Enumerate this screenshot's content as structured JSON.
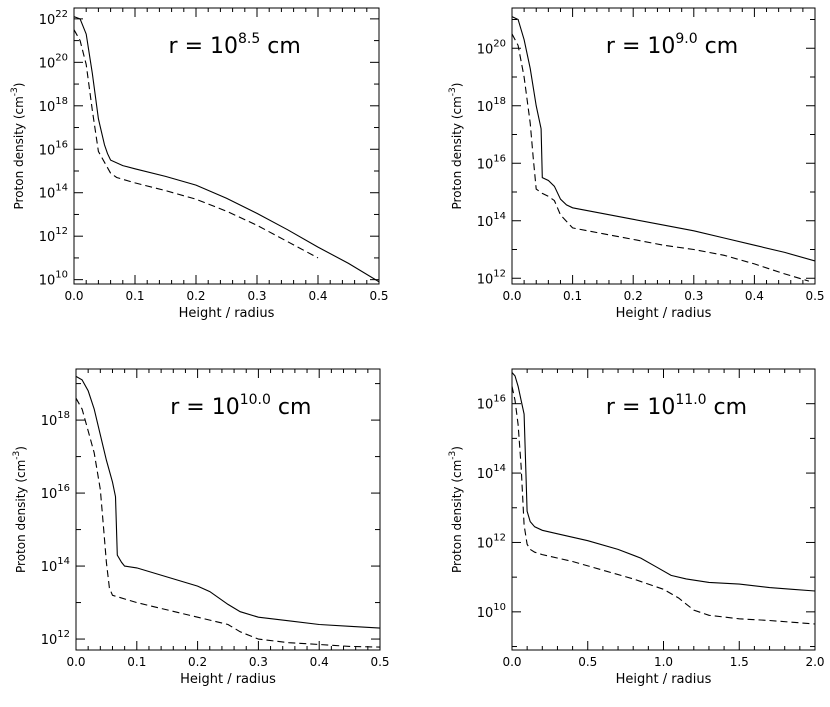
{
  "chart_data": [
    {
      "type": "line",
      "panel": "top-left",
      "annotation": {
        "prefix": "r  =  10",
        "exponent": "8.5",
        "unit": "cm"
      },
      "xlabel": "Height / radius",
      "ylabel": "Proton density (cm",
      "ylabel_exp": "-3",
      "ylabel_close": ")",
      "xlim": [
        0,
        0.5
      ],
      "ylog_range": [
        9.8,
        22.5
      ],
      "xticks": [
        0,
        0.1,
        0.2,
        0.3,
        0.4,
        0.5
      ],
      "xtick_labels": [
        "0.0",
        "0.1",
        "0.2",
        "0.3",
        "0.4",
        "0.5"
      ],
      "yticks": [
        10,
        12,
        14,
        16,
        18,
        20,
        22
      ],
      "ytick_base": "10",
      "ytick_exps": [
        "10",
        "12",
        "14",
        "16",
        "18",
        "20",
        "22"
      ],
      "series": [
        {
          "name": "solid",
          "style": "solid",
          "x": [
            0,
            0.01,
            0.02,
            0.03,
            0.04,
            0.05,
            0.055,
            0.06,
            0.08,
            0.1,
            0.15,
            0.2,
            0.25,
            0.3,
            0.35,
            0.4,
            0.45,
            0.5
          ],
          "y": [
            22.1,
            22.0,
            21.3,
            19.5,
            17.4,
            16.2,
            15.8,
            15.5,
            15.25,
            15.1,
            14.75,
            14.35,
            13.75,
            13.05,
            12.3,
            11.5,
            10.75,
            9.9
          ]
        },
        {
          "name": "dashed",
          "style": "dashed",
          "x": [
            0,
            0.01,
            0.02,
            0.03,
            0.04,
            0.05,
            0.06,
            0.07,
            0.1,
            0.15,
            0.2,
            0.25,
            0.3,
            0.35,
            0.4
          ],
          "y": [
            21.5,
            21.0,
            19.9,
            17.8,
            15.9,
            15.4,
            14.9,
            14.7,
            14.45,
            14.1,
            13.7,
            13.15,
            12.5,
            11.75,
            11.0
          ]
        }
      ]
    },
    {
      "type": "line",
      "panel": "top-right",
      "annotation": {
        "prefix": "r  =  10",
        "exponent": "9.0",
        "unit": "cm"
      },
      "xlabel": "Height / radius",
      "ylabel": "Proton density (cm",
      "ylabel_exp": "-3",
      "ylabel_close": ")",
      "xlim": [
        0,
        0.5
      ],
      "ylog_range": [
        11.8,
        21.4
      ],
      "xticks": [
        0,
        0.1,
        0.2,
        0.3,
        0.4,
        0.5
      ],
      "xtick_labels": [
        "0.0",
        "0.1",
        "0.2",
        "0.3",
        "0.4",
        "0.5"
      ],
      "yticks": [
        12,
        14,
        16,
        18,
        20
      ],
      "ytick_base": "10",
      "ytick_exps": [
        "12",
        "14",
        "16",
        "18",
        "20"
      ],
      "series": [
        {
          "name": "solid",
          "style": "solid",
          "x": [
            0,
            0.01,
            0.02,
            0.03,
            0.04,
            0.048,
            0.05,
            0.06,
            0.07,
            0.08,
            0.09,
            0.1,
            0.15,
            0.2,
            0.25,
            0.3,
            0.35,
            0.4,
            0.45,
            0.5
          ],
          "y": [
            21.1,
            21.0,
            20.3,
            19.3,
            18.0,
            17.2,
            15.5,
            15.4,
            15.2,
            14.75,
            14.55,
            14.45,
            14.25,
            14.05,
            13.85,
            13.65,
            13.4,
            13.15,
            12.9,
            12.6
          ]
        },
        {
          "name": "dashed",
          "style": "dashed",
          "x": [
            0,
            0.01,
            0.02,
            0.03,
            0.035,
            0.04,
            0.05,
            0.06,
            0.07,
            0.08,
            0.1,
            0.15,
            0.2,
            0.25,
            0.3,
            0.35,
            0.4,
            0.45,
            0.49
          ],
          "y": [
            20.5,
            20.1,
            19.0,
            17.4,
            16.2,
            15.1,
            14.95,
            14.85,
            14.7,
            14.2,
            13.75,
            13.55,
            13.35,
            13.15,
            13.0,
            12.8,
            12.5,
            12.15,
            11.9
          ]
        }
      ]
    },
    {
      "type": "line",
      "panel": "bottom-left",
      "annotation": {
        "prefix": "r  =  10",
        "exponent": "10.0",
        "unit": "cm"
      },
      "xlabel": "Height / radius",
      "ylabel": "Proton density (cm",
      "ylabel_exp": "-3",
      "ylabel_close": ")",
      "xlim": [
        0,
        0.5
      ],
      "ylog_range": [
        11.7,
        19.4
      ],
      "xticks": [
        0,
        0.1,
        0.2,
        0.3,
        0.4,
        0.5
      ],
      "xtick_labels": [
        "0.0",
        "0.1",
        "0.2",
        "0.3",
        "0.4",
        "0.5"
      ],
      "yticks": [
        12,
        14,
        16,
        18
      ],
      "ytick_base": "10",
      "ytick_exps": [
        "12",
        "14",
        "16",
        "18"
      ],
      "series": [
        {
          "name": "solid",
          "style": "solid",
          "x": [
            0,
            0.01,
            0.02,
            0.03,
            0.04,
            0.05,
            0.06,
            0.065,
            0.068,
            0.075,
            0.08,
            0.1,
            0.15,
            0.2,
            0.22,
            0.25,
            0.27,
            0.3,
            0.35,
            0.4,
            0.45,
            0.5
          ],
          "y": [
            19.2,
            19.1,
            18.8,
            18.3,
            17.6,
            16.9,
            16.3,
            15.9,
            14.3,
            14.1,
            14.0,
            13.95,
            13.7,
            13.45,
            13.3,
            12.95,
            12.75,
            12.6,
            12.5,
            12.4,
            12.35,
            12.3
          ]
        },
        {
          "name": "dashed",
          "style": "dashed",
          "x": [
            0,
            0.01,
            0.02,
            0.03,
            0.04,
            0.045,
            0.05,
            0.055,
            0.06,
            0.07,
            0.1,
            0.15,
            0.2,
            0.25,
            0.27,
            0.3,
            0.35,
            0.4,
            0.45,
            0.5
          ],
          "y": [
            18.6,
            18.3,
            17.7,
            17.1,
            16.1,
            15.1,
            14.1,
            13.4,
            13.2,
            13.15,
            13.0,
            12.8,
            12.6,
            12.4,
            12.2,
            12.0,
            11.9,
            11.85,
            11.8,
            11.78
          ]
        }
      ]
    },
    {
      "type": "line",
      "panel": "bottom-right",
      "annotation": {
        "prefix": "r  =  10",
        "exponent": "11.0",
        "unit": "cm"
      },
      "xlabel": "Height / radius",
      "ylabel": "Proton density (cm",
      "ylabel_exp": "-3",
      "ylabel_close": ")",
      "xlim": [
        0,
        2.0
      ],
      "ylog_range": [
        8.9,
        17.0
      ],
      "xticks": [
        0,
        0.5,
        1.0,
        1.5,
        2.0
      ],
      "xtick_labels": [
        "0.0",
        "0.5",
        "1.0",
        "1.5",
        "2.0"
      ],
      "yticks": [
        10,
        12,
        14,
        16
      ],
      "ytick_base": "10",
      "ytick_exps": [
        "10",
        "12",
        "14",
        "16"
      ],
      "series": [
        {
          "name": "solid",
          "style": "solid",
          "x": [
            0,
            0.02,
            0.04,
            0.06,
            0.08,
            0.1,
            0.12,
            0.15,
            0.2,
            0.3,
            0.5,
            0.7,
            0.85,
            0.95,
            1.05,
            1.15,
            1.3,
            1.5,
            1.7,
            1.85,
            2.0
          ],
          "y": [
            16.9,
            16.8,
            16.5,
            16.1,
            15.7,
            12.9,
            12.6,
            12.45,
            12.35,
            12.25,
            12.05,
            11.8,
            11.55,
            11.3,
            11.05,
            10.95,
            10.85,
            10.8,
            10.7,
            10.65,
            10.6
          ]
        },
        {
          "name": "dashed",
          "style": "dashed",
          "x": [
            0,
            0.02,
            0.04,
            0.06,
            0.08,
            0.1,
            0.12,
            0.15,
            0.2,
            0.4,
            0.6,
            0.8,
            1.0,
            1.1,
            1.2,
            1.3,
            1.5,
            1.7,
            2.0
          ],
          "y": [
            16.5,
            16.1,
            15.4,
            14.2,
            12.5,
            11.95,
            11.8,
            11.72,
            11.65,
            11.45,
            11.2,
            10.95,
            10.65,
            10.4,
            10.05,
            9.9,
            9.8,
            9.75,
            9.65
          ]
        }
      ]
    }
  ]
}
